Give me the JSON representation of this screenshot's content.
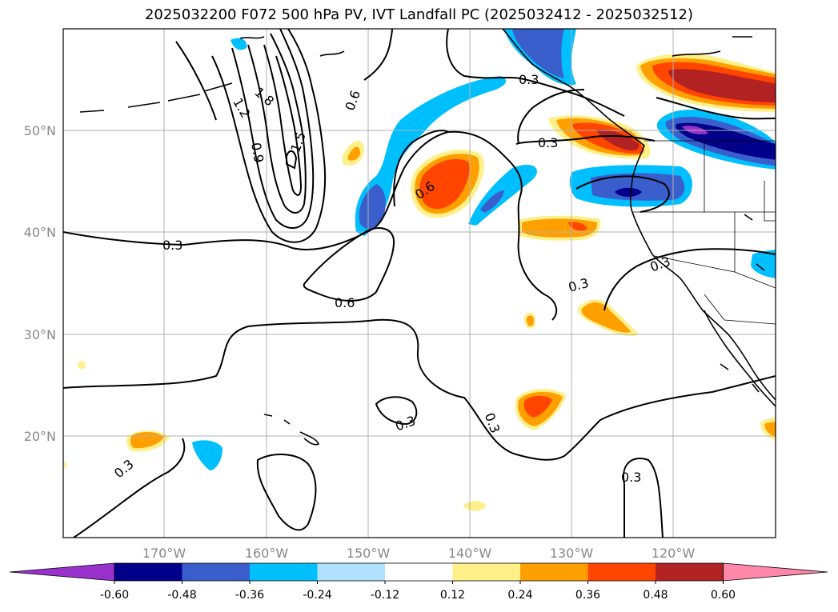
{
  "title": "2025032200 F072 500 hPa PV, IVT Landfall PC (2025032412 - 2025032512)",
  "lat_ticks": [
    "50°N",
    "40°N",
    "30°N",
    "20°N"
  ],
  "lon_ticks": [
    "170°W",
    "160°W",
    "150°W",
    "140°W",
    "130°W",
    "120°W"
  ],
  "contour_labels": [
    "1.8",
    "1.5",
    "1.2",
    "0.9",
    "0.6",
    "0.3",
    "0.6",
    "0.6",
    "0.3",
    "0.3",
    "0.3",
    "0.3",
    "0.3",
    "0.3",
    "0.3",
    "0.3"
  ],
  "colorbar": {
    "ticks": [
      "-0.60",
      "-0.48",
      "-0.36",
      "-0.24",
      "-0.12",
      "0.12",
      "0.24",
      "0.36",
      "0.48",
      "0.60"
    ],
    "colors": [
      "#9932cc",
      "#00008b",
      "#3a5fcd",
      "#00bfff",
      "#b0e2ff",
      "#ffffff",
      "#fff08a",
      "#ffa000",
      "#ff4500",
      "#b22222",
      "#ff88aa"
    ]
  }
}
